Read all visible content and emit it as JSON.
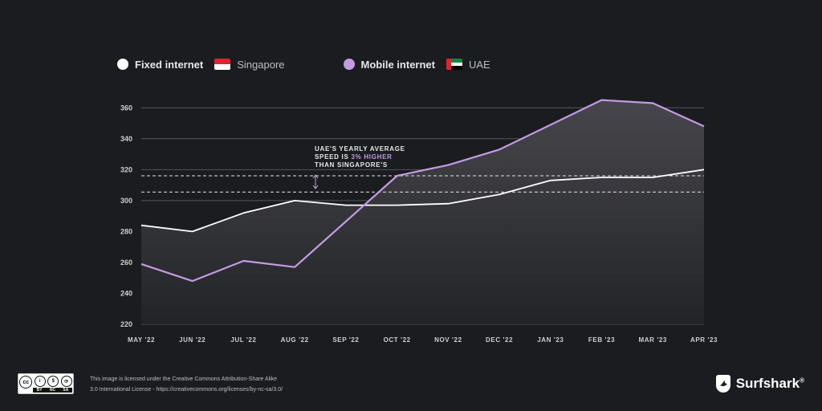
{
  "legend": {
    "fixed_label": "Fixed internet",
    "fixed_country": "Singapore",
    "mobile_label": "Mobile internet",
    "mobile_country": "UAE"
  },
  "annotation": {
    "line1": "UAE'S YEARLY AVERAGE",
    "line2_prefix": "SPEED IS ",
    "line2_highlight": "3% HIGHER",
    "line3": "THAN SINGAPORE'S"
  },
  "colors": {
    "background": "#1b1c20",
    "fixed": "#ffffff",
    "mobile": "#c49be3",
    "grid": "#55565c",
    "tick_text": "#cfcfcf"
  },
  "chart_data": {
    "type": "line",
    "categories": [
      "MAY '22",
      "JUN '22",
      "JUL '22",
      "AUG '22",
      "SEP '22",
      "OCT '22",
      "NOV '22",
      "DEC '22",
      "JAN '23",
      "FEB '23",
      "MAR '23",
      "APR '23"
    ],
    "series": [
      {
        "name": "Fixed internet",
        "country": "Singapore",
        "color": "#ffffff",
        "values": [
          284,
          280,
          292,
          300,
          297,
          297,
          298,
          304,
          313,
          315,
          315,
          320
        ]
      },
      {
        "name": "Mobile internet",
        "country": "UAE",
        "color": "#c49be3",
        "values": [
          259,
          248,
          261,
          257,
          null,
          316,
          323,
          333,
          349,
          365,
          363,
          348
        ]
      }
    ],
    "yticks": [
      220,
      240,
      260,
      280,
      300,
      320,
      340,
      360
    ],
    "ylim": [
      220,
      370
    ],
    "reference_lines": [
      305.5,
      316
    ],
    "grid": true,
    "legend_position": "top-left"
  },
  "footer": {
    "license_line1": "This image is licensed under the Creative Commons Attribution-Share Alike",
    "license_line2": "3.0 International License - https://creativecommons.org/licenses/by-nc-sa/3.0/",
    "cc_labels": [
      "BY",
      "NC",
      "SA"
    ],
    "brand": "Surfshark",
    "brand_mark": "®"
  }
}
